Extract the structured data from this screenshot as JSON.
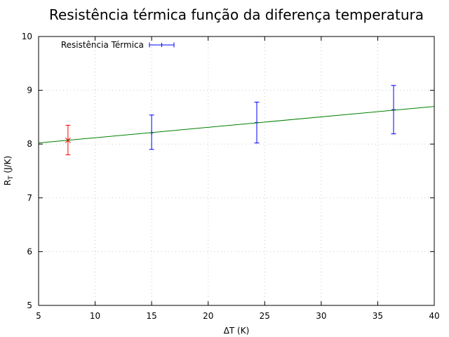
{
  "chart_data": {
    "type": "scatter",
    "title": "Resistência térmica função da diferença temperatura",
    "xlabel": "ΔT (K)",
    "ylabel_main": "R",
    "ylabel_sub": "T",
    "ylabel_rest": " (J/K)",
    "xlim": [
      5,
      40
    ],
    "ylim": [
      5,
      10
    ],
    "xticks": [
      "5",
      "10",
      "15",
      "20",
      "25",
      "30",
      "35",
      "40"
    ],
    "yticks": [
      "5",
      "6",
      "7",
      "8",
      "9",
      "10"
    ],
    "grid": true,
    "legend_position": "top-left",
    "series": [
      {
        "name": "Resistência Térmica",
        "color": "#0000ff",
        "marker": "plus",
        "points": [
          {
            "x": 15.0,
            "y": 8.21,
            "err_low": 7.9,
            "err_high": 8.54
          },
          {
            "x": 24.3,
            "y": 8.4,
            "err_low": 8.02,
            "err_high": 8.78
          },
          {
            "x": 36.4,
            "y": 8.64,
            "err_low": 8.19,
            "err_high": 9.09
          }
        ]
      },
      {
        "color": "#ff0000",
        "marker": "cross",
        "points": [
          {
            "x": 7.6,
            "y": 8.07,
            "err_low": 7.8,
            "err_high": 8.35
          }
        ]
      },
      {
        "type": "line",
        "color": "#008000",
        "line": {
          "x0": 5,
          "y0": 8.02,
          "x1": 40,
          "y1": 8.7
        }
      }
    ]
  }
}
